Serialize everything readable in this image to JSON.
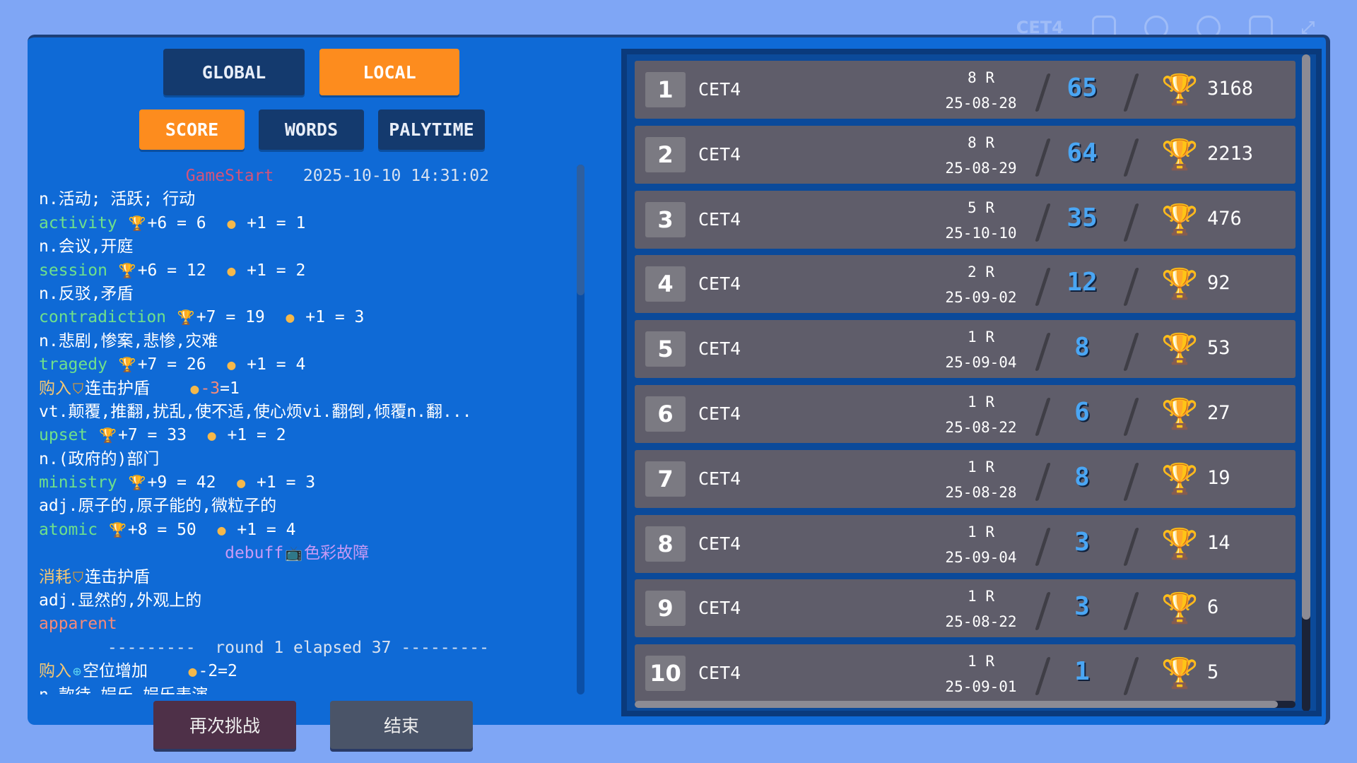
{
  "topbar": {
    "label": "CET4",
    "icons": [
      "az-icon",
      "info-icon",
      "leaf-icon",
      "robot-icon",
      "expand-icon"
    ]
  },
  "tabs": {
    "global": "GLOBAL",
    "local": "LOCAL",
    "active": "LOCAL"
  },
  "sort": {
    "score": "SCORE",
    "words": "WORDS",
    "playtime": "PALYTIME",
    "active": "SCORE"
  },
  "colors": {
    "word": "#6fe08a",
    "buy": "#f6c873",
    "def": "#ffffff",
    "start": "#d4547a",
    "debuff": "#c79af5",
    "wrong": "#f58a7a",
    "accent": "#fd8c1e",
    "score": "#4aa6f4"
  },
  "log": [
    [
      {
        "t": "               GameStart",
        "c": "start"
      },
      {
        "t": "   2025-10-10 14:31:02",
        "c": "meta"
      }
    ],
    [
      {
        "t": "n.活动; 活跃; 行动",
        "c": "def"
      }
    ],
    [
      {
        "t": "activity ",
        "c": "word"
      },
      {
        "i": "trophy-icon"
      },
      {
        "t": "+6 = 6  ",
        "c": "def"
      },
      {
        "i": "coins-icon"
      },
      {
        "t": " +1 = 1",
        "c": "def"
      }
    ],
    [
      {
        "t": "n.会议,开庭",
        "c": "def"
      }
    ],
    [
      {
        "t": "session ",
        "c": "word"
      },
      {
        "i": "trophy-icon"
      },
      {
        "t": "+6 = 12  ",
        "c": "def"
      },
      {
        "i": "coins-icon"
      },
      {
        "t": " +1 = 2",
        "c": "def"
      }
    ],
    [
      {
        "t": "n.反驳,矛盾",
        "c": "def"
      }
    ],
    [
      {
        "t": "contradiction ",
        "c": "word"
      },
      {
        "i": "trophy-icon"
      },
      {
        "t": "+7 = 19  ",
        "c": "def"
      },
      {
        "i": "coins-icon"
      },
      {
        "t": " +1 = 3",
        "c": "def"
      }
    ],
    [
      {
        "t": "n.悲剧,惨案,悲惨,灾难",
        "c": "def"
      }
    ],
    [
      {
        "t": "tragedy ",
        "c": "word"
      },
      {
        "i": "trophy-icon"
      },
      {
        "t": "+7 = 26  ",
        "c": "def"
      },
      {
        "i": "coins-icon"
      },
      {
        "t": " +1 = 4",
        "c": "def"
      }
    ],
    [
      {
        "t": "购入",
        "c": "buy"
      },
      {
        "i": "shield-icon"
      },
      {
        "t": "连击护盾    ",
        "c": "def"
      },
      {
        "i": "coins-icon"
      },
      {
        "t": "-3",
        "c": "wrong"
      },
      {
        "t": "=1",
        "c": "def"
      }
    ],
    [
      {
        "t": "vt.颠覆,推翻,扰乱,使不适,使心烦vi.翻倒,倾覆n.翻...",
        "c": "def"
      }
    ],
    [
      {
        "t": "upset ",
        "c": "word"
      },
      {
        "i": "trophy-icon"
      },
      {
        "t": "+7 = 33  ",
        "c": "def"
      },
      {
        "i": "coins-icon"
      },
      {
        "t": " +1 = 2",
        "c": "def"
      }
    ],
    [
      {
        "t": "n.(政府的)部门",
        "c": "def"
      }
    ],
    [
      {
        "t": "ministry ",
        "c": "word"
      },
      {
        "i": "trophy-icon"
      },
      {
        "t": "+9 = 42  ",
        "c": "def"
      },
      {
        "i": "coins-icon"
      },
      {
        "t": " +1 = 3",
        "c": "def"
      }
    ],
    [
      {
        "t": "adj.原子的,原子能的,微粒子的",
        "c": "def"
      }
    ],
    [
      {
        "t": "atomic ",
        "c": "word"
      },
      {
        "i": "trophy-icon"
      },
      {
        "t": "+8 = 50  ",
        "c": "def"
      },
      {
        "i": "coins-icon"
      },
      {
        "t": " +1 = 4",
        "c": "def"
      }
    ],
    [
      {
        "t": "                   debuff",
        "c": "debuff"
      },
      {
        "i": "tv-icon"
      },
      {
        "t": "色彩故障",
        "c": "debuff"
      }
    ],
    [
      {
        "t": "消耗",
        "c": "buy"
      },
      {
        "i": "shield-icon"
      },
      {
        "t": "连击护盾",
        "c": "def"
      }
    ],
    [
      {
        "t": "adj.显然的,外观上的",
        "c": "def"
      }
    ],
    [
      {
        "t": "apparent",
        "c": "wrong"
      }
    ],
    [
      {
        "t": "       ---------  round 1 elapsed 37 ---------",
        "c": "meta"
      }
    ],
    [
      {
        "t": "购入",
        "c": "buy"
      },
      {
        "i": "plus-circle-icon"
      },
      {
        "t": "空位增加    ",
        "c": "def"
      },
      {
        "i": "coins-icon"
      },
      {
        "t": "-2=2",
        "c": "def"
      }
    ],
    [
      {
        "t": "n.款待,娱乐,娱乐表演",
        "c": "def"
      }
    ]
  ],
  "leaderboard": [
    {
      "rank": "1",
      "name": "CET4",
      "rounds": "8 R",
      "date": "25-08-28",
      "score": "65",
      "total": "3168"
    },
    {
      "rank": "2",
      "name": "CET4",
      "rounds": "8 R",
      "date": "25-08-29",
      "score": "64",
      "total": "2213"
    },
    {
      "rank": "3",
      "name": "CET4",
      "rounds": "5 R",
      "date": "25-10-10",
      "score": "35",
      "total": "476"
    },
    {
      "rank": "4",
      "name": "CET4",
      "rounds": "2 R",
      "date": "25-09-02",
      "score": "12",
      "total": "92"
    },
    {
      "rank": "5",
      "name": "CET4",
      "rounds": "1 R",
      "date": "25-09-04",
      "score": "8",
      "total": "53"
    },
    {
      "rank": "6",
      "name": "CET4",
      "rounds": "1 R",
      "date": "25-08-22",
      "score": "6",
      "total": "27"
    },
    {
      "rank": "7",
      "name": "CET4",
      "rounds": "1 R",
      "date": "25-08-28",
      "score": "8",
      "total": "19"
    },
    {
      "rank": "8",
      "name": "CET4",
      "rounds": "1 R",
      "date": "25-09-04",
      "score": "3",
      "total": "14"
    },
    {
      "rank": "9",
      "name": "CET4",
      "rounds": "1 R",
      "date": "25-08-22",
      "score": "3",
      "total": "6"
    },
    {
      "rank": "10",
      "name": "CET4",
      "rounds": "1 R",
      "date": "25-09-01",
      "score": "1",
      "total": "5"
    }
  ],
  "buttons": {
    "retry": "再次挑战",
    "end": "结束"
  }
}
